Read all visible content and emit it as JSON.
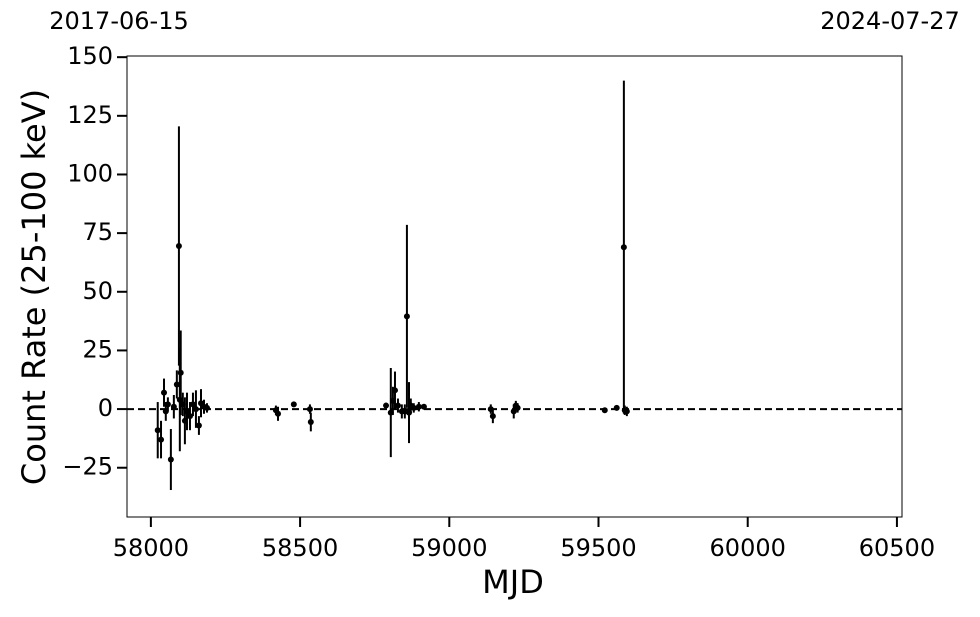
{
  "chart_data": {
    "type": "errorbar",
    "xlabel": "MJD",
    "ylabel": "Count Rate (25-100 keV)",
    "xlim": [
      57920,
      60517
    ],
    "ylim": [
      -46,
      150.5
    ],
    "xticks": [
      58000,
      58500,
      59000,
      59500,
      60000,
      60500
    ],
    "yticks": [
      {
        "value": -25,
        "label": "−25"
      },
      0,
      25,
      50,
      75,
      100,
      125,
      150
    ],
    "x2ticks": [
      {
        "value": 57920,
        "label": "2017-06-15"
      },
      {
        "value": 60517,
        "label": "2024-07-27"
      }
    ],
    "hline": 0,
    "color": "#000000",
    "x": [
      58023,
      58034,
      58044,
      58050,
      58057,
      58067,
      58077,
      58087,
      58094,
      58097,
      58100,
      58107,
      58114,
      58121,
      58131,
      58141,
      58151,
      58161,
      58168,
      58178,
      58188,
      58419,
      58426,
      58479,
      58533,
      58536,
      58788,
      58804,
      58811,
      58818,
      58828,
      58841,
      58851,
      58858,
      58865,
      58871,
      58881,
      58898,
      58915,
      59139,
      59146,
      59216,
      59223,
      59229,
      59521,
      59561,
      59585,
      59588,
      59595
    ],
    "values": [
      -9,
      -13,
      7,
      -1,
      2,
      -21.5,
      1,
      10.5,
      69.5,
      4,
      15.5,
      2,
      -5,
      -1,
      -3,
      2,
      0,
      -7,
      2.5,
      1,
      0.5,
      -0.5,
      -2,
      2,
      0,
      -5.5,
      1.5,
      -1.5,
      3.5,
      8,
      1.5,
      -1,
      -1,
      39.5,
      -1.5,
      1.5,
      0.5,
      1,
      1,
      0,
      -3,
      -1,
      1.5,
      0.5,
      -0.5,
      0.5,
      69,
      -0.5,
      -1
    ],
    "errors": [
      12,
      8,
      6,
      4,
      3,
      13,
      5,
      6,
      51,
      22,
      18,
      5,
      10,
      8,
      6,
      5,
      8,
      4,
      6,
      3,
      2,
      2,
      3,
      1,
      2,
      4,
      1,
      19,
      6,
      8,
      3,
      3,
      3,
      39,
      13,
      3,
      2,
      2,
      1,
      2,
      3,
      3,
      2,
      2,
      1,
      1,
      71,
      2,
      2
    ]
  }
}
